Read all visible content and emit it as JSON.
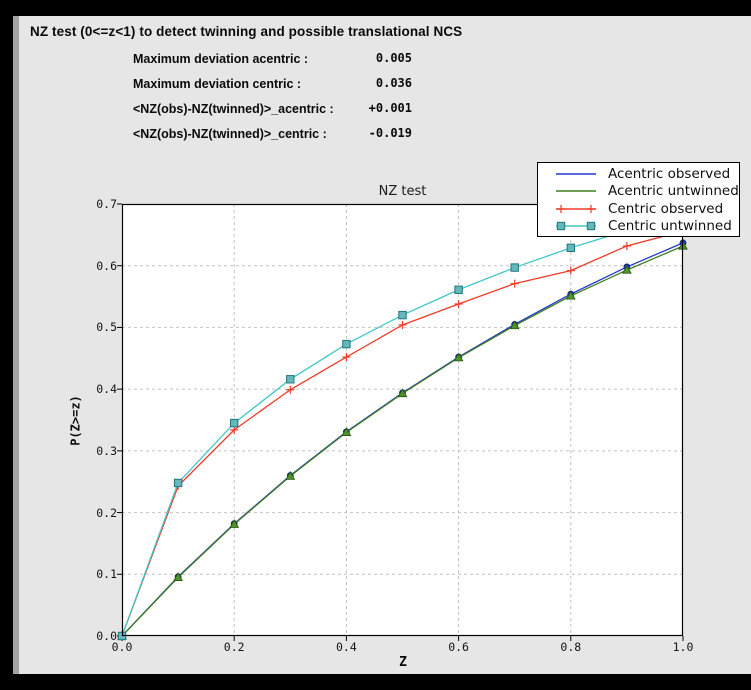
{
  "window": {
    "title": "NZ test (0<=z<1) to detect twinning and possible translational NCS"
  },
  "stats": {
    "rows": [
      {
        "label": "Maximum deviation acentric :",
        "value": "0.005"
      },
      {
        "label": "Maximum deviation centric :",
        "value": "0.036"
      },
      {
        "label": "<NZ(obs)-NZ(twinned)>_acentric :",
        "value": "+0.001"
      },
      {
        "label": "<NZ(obs)-NZ(twinned)>_centric :",
        "value": "-0.019"
      }
    ]
  },
  "colors": {
    "window_bg": "#e6e6e6",
    "frame": "#000000",
    "plot_bg": "#ffffff",
    "grid": "#c2c2c2",
    "text": "#111111"
  },
  "chart_data": {
    "type": "line",
    "title": "NZ test",
    "xlabel": "Z",
    "ylabel": "P(Z>=z)",
    "xlim": [
      0.0,
      1.0
    ],
    "ylim": [
      0.0,
      0.7
    ],
    "grid": true,
    "legend_position": "upper right, overlapping plot corner",
    "x_ticks": [
      "0.0",
      "0.2",
      "0.4",
      "0.6",
      "0.8",
      "1.0"
    ],
    "x_tick_values": [
      0.0,
      0.2,
      0.4,
      0.6,
      0.8,
      1.0
    ],
    "y_ticks": [
      "0.0",
      "0.1",
      "0.2",
      "0.3",
      "0.4",
      "0.5",
      "0.6",
      "0.7"
    ],
    "y_tick_values": [
      0.0,
      0.1,
      0.2,
      0.3,
      0.4,
      0.5,
      0.6,
      0.7
    ],
    "x": [
      0.0,
      0.1,
      0.2,
      0.3,
      0.4,
      0.5,
      0.6,
      0.7,
      0.8,
      0.9,
      1.0
    ],
    "series": [
      {
        "name": "Acentric observed",
        "color": "#2239cc",
        "marker": "circle",
        "marker_face": "#2239cc",
        "marker_edge": "#101a66",
        "values": [
          0.0,
          0.096,
          0.182,
          0.26,
          0.331,
          0.394,
          0.452,
          0.505,
          0.554,
          0.598,
          0.637
        ]
      },
      {
        "name": "Acentric untwinned",
        "color": "#3f7d20",
        "marker": "triangle",
        "marker_face": "#4d9428",
        "marker_edge": "#27540f",
        "values": [
          0.0,
          0.095,
          0.181,
          0.259,
          0.33,
          0.393,
          0.451,
          0.503,
          0.551,
          0.593,
          0.632
        ]
      },
      {
        "name": "Centric observed",
        "color": "#ef3b28",
        "marker": "plus",
        "marker_face": "#ef3b28",
        "marker_edge": "#ef3b28",
        "values": [
          0.0,
          0.243,
          0.334,
          0.399,
          0.452,
          0.504,
          0.538,
          0.571,
          0.592,
          0.632,
          0.656
        ]
      },
      {
        "name": "Centric untwinned",
        "color": "#41c6c6",
        "marker": "square",
        "marker_face": "#64b8bc",
        "marker_edge": "#1f767c",
        "values": [
          0.0,
          0.248,
          0.345,
          0.416,
          0.473,
          0.52,
          0.561,
          0.597,
          0.629,
          0.657,
          0.683
        ]
      }
    ]
  }
}
